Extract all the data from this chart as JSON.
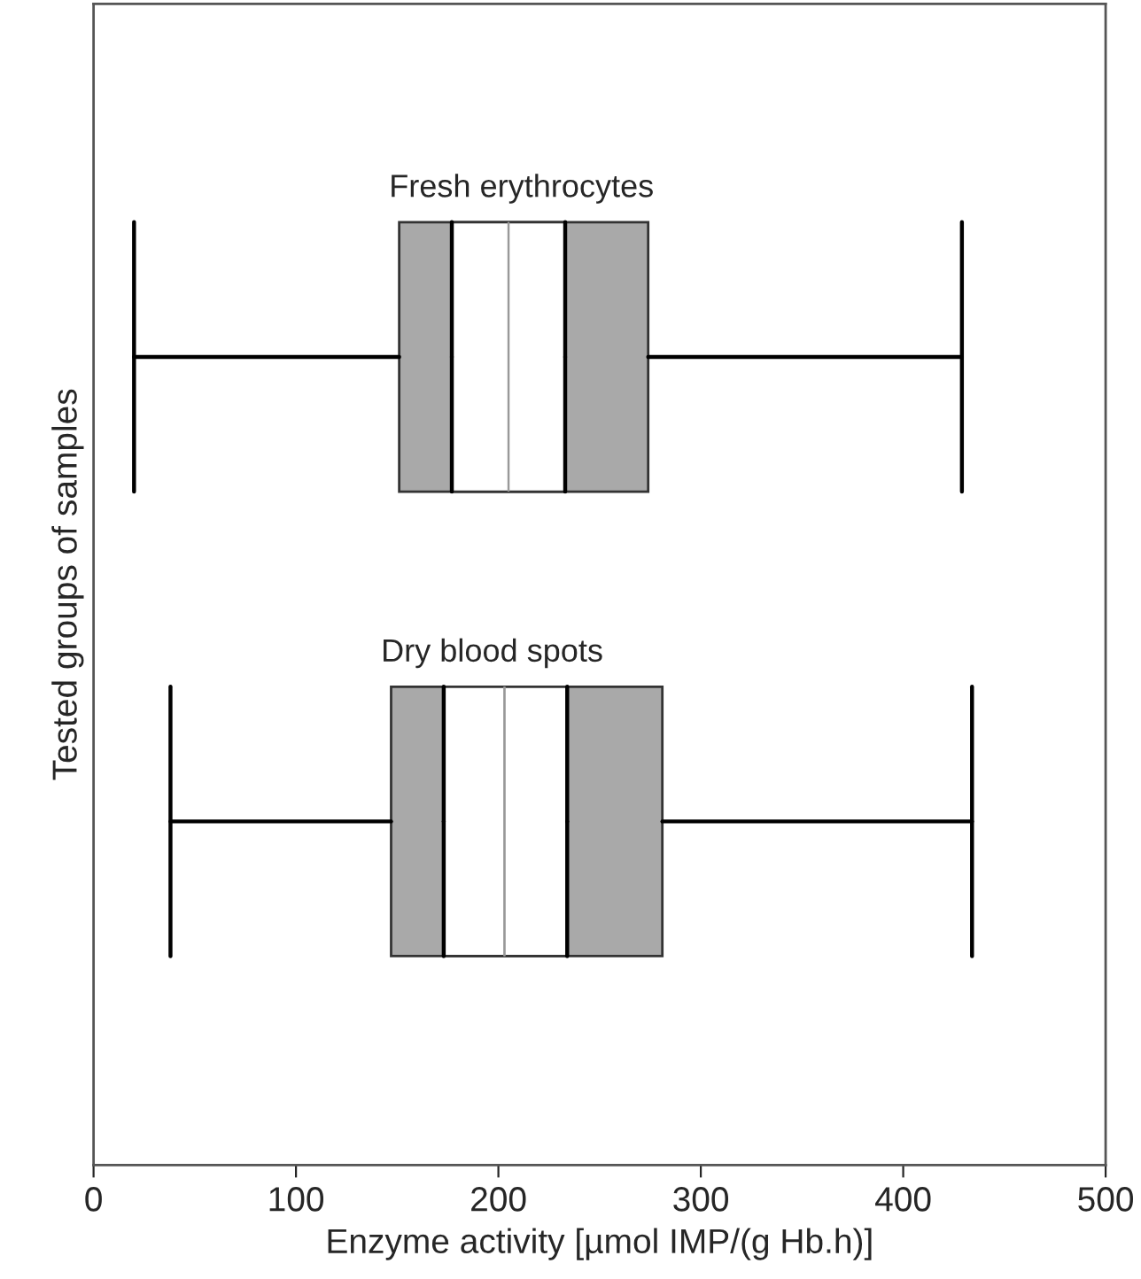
{
  "chart_data": {
    "type": "box",
    "orientation": "horizontal",
    "xlabel": "Enzyme activity [µmol IMP/(g Hb.h)]",
    "ylabel": "Tested groups of samples",
    "categories": [
      "Fresh erythrocytes",
      "Dry blood spots"
    ],
    "xlim": [
      0,
      500
    ],
    "xticks": [
      0,
      100,
      200,
      300,
      400,
      500
    ],
    "grid": false,
    "legend": false,
    "series": [
      {
        "color": "#a9a9a9",
        "boxes": [
          {
            "low": 20,
            "q1": 151,
            "median": 205,
            "q3": 274,
            "high": 429
          },
          {
            "low": 38,
            "q1": 147,
            "median": 203,
            "q3": 281,
            "high": 434
          }
        ]
      },
      {
        "color": "#ffffff",
        "boxes": [
          {
            "low": 177,
            "q1": 177,
            "median": 205,
            "q3": 233,
            "high": 233
          },
          {
            "low": 173,
            "q1": 173,
            "median": 203,
            "q3": 234,
            "high": 234
          }
        ]
      }
    ]
  }
}
